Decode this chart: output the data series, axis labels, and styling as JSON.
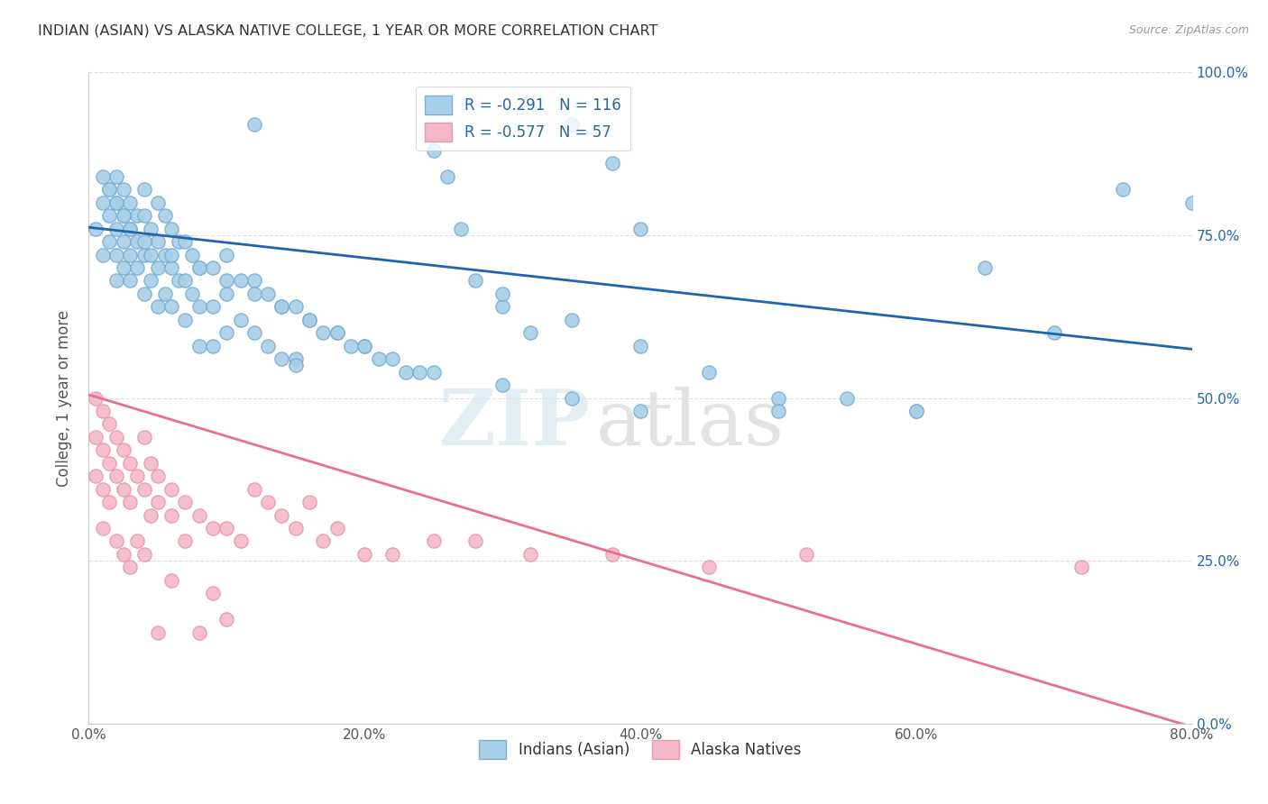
{
  "title": "INDIAN (ASIAN) VS ALASKA NATIVE COLLEGE, 1 YEAR OR MORE CORRELATION CHART",
  "source": "Source: ZipAtlas.com",
  "ylabel": "College, 1 year or more",
  "xlabel_ticks": [
    "0.0%",
    "20.0%",
    "40.0%",
    "60.0%",
    "80.0%"
  ],
  "ylabel_ticks": [
    "0.0%",
    "25.0%",
    "50.0%",
    "75.0%",
    "100.0%"
  ],
  "xlim": [
    0.0,
    0.8
  ],
  "ylim": [
    0.0,
    1.0
  ],
  "watermark_zip": "ZIP",
  "watermark_atlas": "atlas",
  "legend_r1": "R = -0.291",
  "legend_n1": "N = 116",
  "legend_r2": "R = -0.577",
  "legend_n2": "N = 57",
  "legend_label1": "Indians (Asian)",
  "legend_label2": "Alaska Natives",
  "color_blue": "#a8cfe8",
  "color_pink": "#f5b8c8",
  "line_color_blue": "#2166ac",
  "line_color_pink": "#e8708a",
  "scatter_edge_blue": "#7aafd4",
  "scatter_edge_pink": "#e898b0",
  "blue_line_x": [
    0.0,
    0.8
  ],
  "blue_line_y": [
    0.762,
    0.575
  ],
  "pink_line_x": [
    0.0,
    0.8
  ],
  "pink_line_y": [
    0.505,
    -0.005
  ],
  "blue_x": [
    0.005,
    0.01,
    0.01,
    0.015,
    0.015,
    0.015,
    0.02,
    0.02,
    0.02,
    0.02,
    0.02,
    0.025,
    0.025,
    0.025,
    0.025,
    0.03,
    0.03,
    0.03,
    0.03,
    0.035,
    0.035,
    0.035,
    0.04,
    0.04,
    0.04,
    0.04,
    0.045,
    0.045,
    0.045,
    0.05,
    0.05,
    0.05,
    0.05,
    0.055,
    0.055,
    0.055,
    0.06,
    0.06,
    0.06,
    0.065,
    0.065,
    0.07,
    0.07,
    0.07,
    0.075,
    0.075,
    0.08,
    0.08,
    0.08,
    0.09,
    0.09,
    0.09,
    0.1,
    0.1,
    0.1,
    0.11,
    0.11,
    0.12,
    0.12,
    0.13,
    0.13,
    0.14,
    0.14,
    0.15,
    0.15,
    0.16,
    0.17,
    0.18,
    0.19,
    0.2,
    0.21,
    0.22,
    0.23,
    0.24,
    0.25,
    0.26,
    0.27,
    0.28,
    0.3,
    0.32,
    0.35,
    0.38,
    0.4,
    0.3,
    0.35,
    0.4,
    0.45,
    0.5,
    0.55,
    0.6,
    0.65,
    0.7,
    0.75,
    0.8,
    0.6,
    0.5,
    0.4,
    0.35,
    0.3,
    0.25,
    0.2,
    0.18,
    0.16,
    0.14,
    0.12,
    0.1,
    0.08,
    0.06,
    0.04,
    0.03,
    0.025,
    0.02,
    0.015,
    0.01,
    0.15,
    0.12
  ],
  "blue_y": [
    0.76,
    0.8,
    0.72,
    0.82,
    0.78,
    0.74,
    0.84,
    0.8,
    0.76,
    0.72,
    0.68,
    0.82,
    0.78,
    0.74,
    0.7,
    0.8,
    0.76,
    0.72,
    0.68,
    0.78,
    0.74,
    0.7,
    0.82,
    0.78,
    0.72,
    0.66,
    0.76,
    0.72,
    0.68,
    0.8,
    0.74,
    0.7,
    0.64,
    0.78,
    0.72,
    0.66,
    0.76,
    0.7,
    0.64,
    0.74,
    0.68,
    0.74,
    0.68,
    0.62,
    0.72,
    0.66,
    0.7,
    0.64,
    0.58,
    0.7,
    0.64,
    0.58,
    0.72,
    0.66,
    0.6,
    0.68,
    0.62,
    0.68,
    0.6,
    0.66,
    0.58,
    0.64,
    0.56,
    0.64,
    0.56,
    0.62,
    0.6,
    0.6,
    0.58,
    0.58,
    0.56,
    0.56,
    0.54,
    0.54,
    0.88,
    0.84,
    0.76,
    0.68,
    0.64,
    0.6,
    0.92,
    0.86,
    0.76,
    0.66,
    0.62,
    0.58,
    0.54,
    0.5,
    0.5,
    0.48,
    0.7,
    0.6,
    0.82,
    0.8,
    0.48,
    0.48,
    0.48,
    0.5,
    0.52,
    0.54,
    0.58,
    0.6,
    0.62,
    0.64,
    0.66,
    0.68,
    0.7,
    0.72,
    0.74,
    0.76,
    0.78,
    0.8,
    0.82,
    0.84,
    0.55,
    0.92
  ],
  "pink_x": [
    0.005,
    0.005,
    0.005,
    0.01,
    0.01,
    0.01,
    0.01,
    0.015,
    0.015,
    0.015,
    0.02,
    0.02,
    0.02,
    0.025,
    0.025,
    0.025,
    0.03,
    0.03,
    0.03,
    0.035,
    0.035,
    0.04,
    0.04,
    0.04,
    0.045,
    0.045,
    0.05,
    0.05,
    0.05,
    0.06,
    0.06,
    0.06,
    0.07,
    0.07,
    0.08,
    0.08,
    0.09,
    0.09,
    0.1,
    0.1,
    0.11,
    0.12,
    0.13,
    0.14,
    0.15,
    0.16,
    0.17,
    0.18,
    0.2,
    0.22,
    0.25,
    0.28,
    0.32,
    0.38,
    0.45,
    0.52,
    0.72
  ],
  "pink_y": [
    0.5,
    0.44,
    0.38,
    0.48,
    0.42,
    0.36,
    0.3,
    0.46,
    0.4,
    0.34,
    0.44,
    0.38,
    0.28,
    0.42,
    0.36,
    0.26,
    0.4,
    0.34,
    0.24,
    0.38,
    0.28,
    0.44,
    0.36,
    0.26,
    0.4,
    0.32,
    0.38,
    0.34,
    0.14,
    0.36,
    0.32,
    0.22,
    0.34,
    0.28,
    0.32,
    0.14,
    0.3,
    0.2,
    0.3,
    0.16,
    0.28,
    0.36,
    0.34,
    0.32,
    0.3,
    0.34,
    0.28,
    0.3,
    0.26,
    0.26,
    0.28,
    0.28,
    0.26,
    0.26,
    0.24,
    0.26,
    0.24
  ],
  "grid_color": "#dddddd",
  "bg_color": "#ffffff",
  "title_color": "#333333",
  "tick_color": "#555555",
  "right_tick_color": "#2166ac"
}
